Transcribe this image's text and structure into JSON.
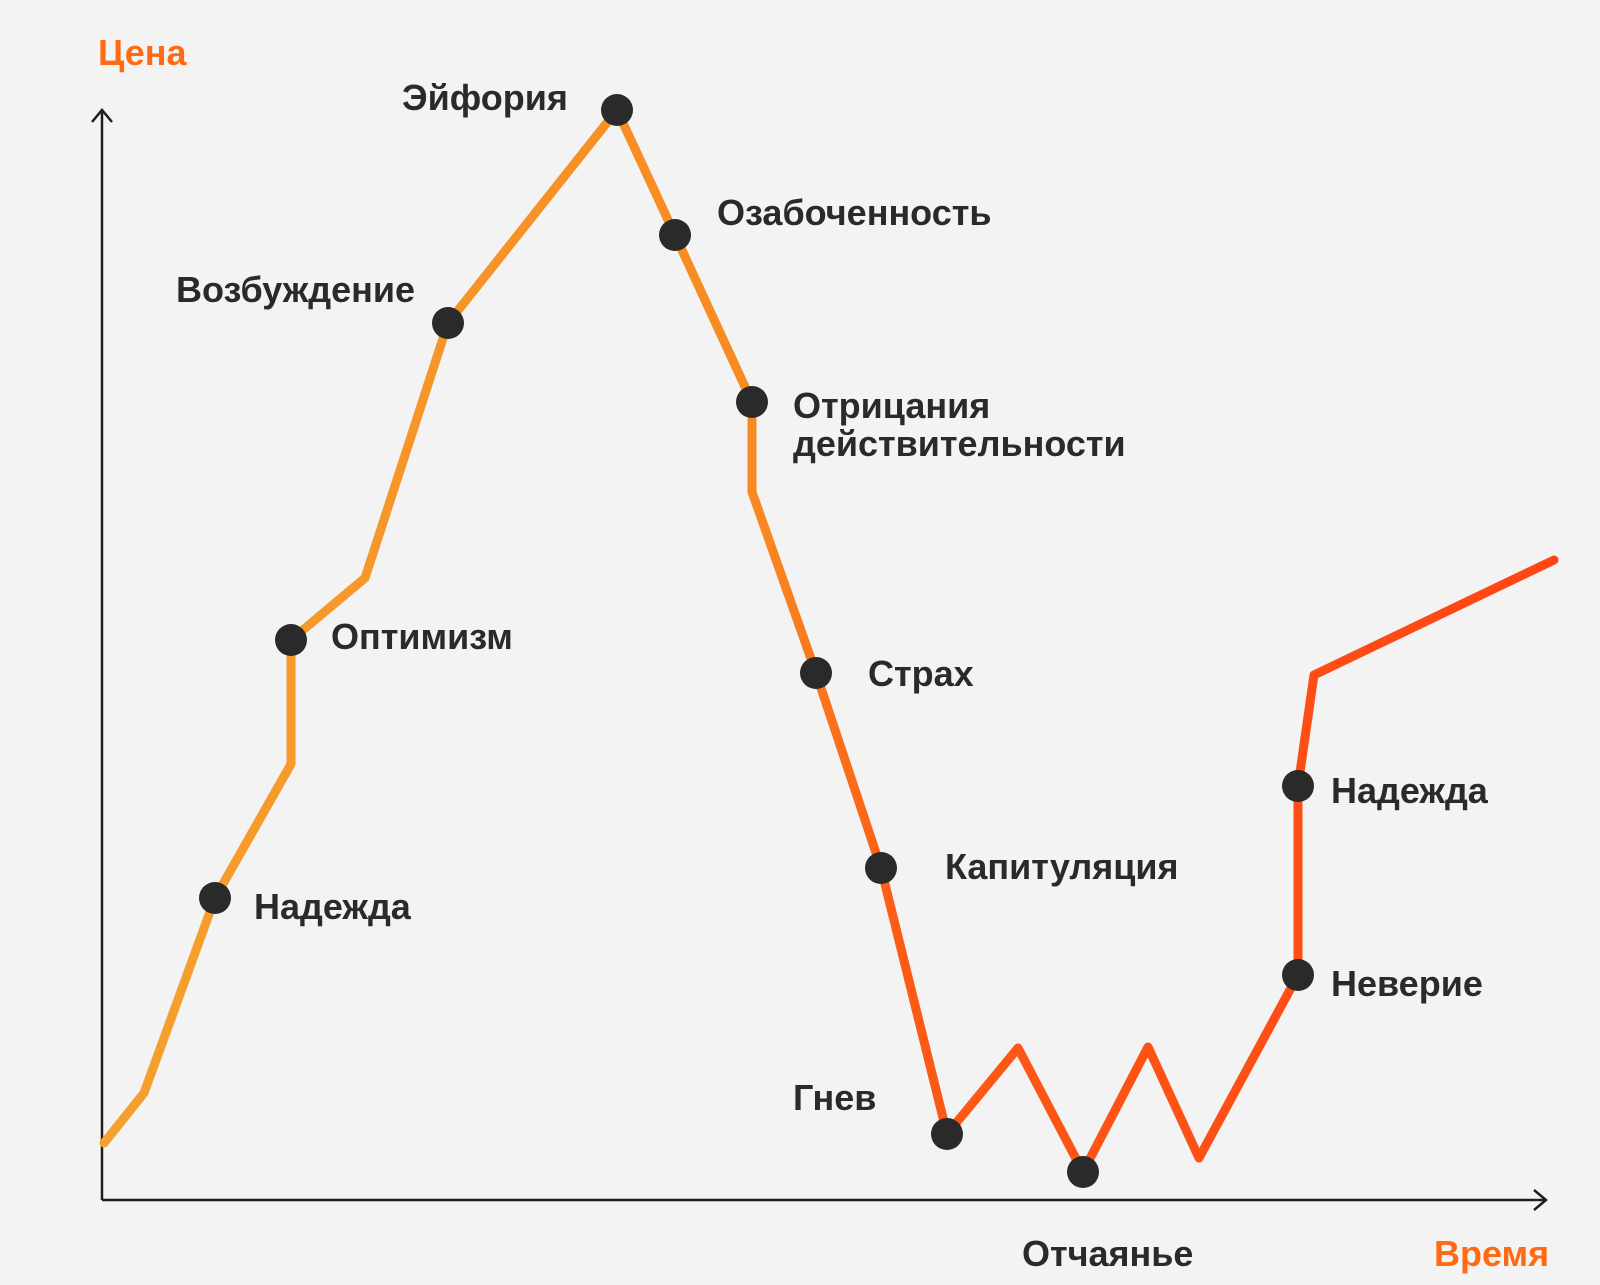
{
  "axes": {
    "y_title": "Цена",
    "x_title": "Время"
  },
  "colors": {
    "axis_title": "#ff6a13",
    "label_text": "#2a2a2a",
    "dot": "#2a2a2a",
    "curve_gradient": [
      "#f5a02f",
      "#f88a22",
      "#fd5a16",
      "#ff4514"
    ],
    "background": "#f3f3f3"
  },
  "stages": [
    {
      "id": "hope-1",
      "label": "Надежда"
    },
    {
      "id": "optimism",
      "label": "Оптимизм"
    },
    {
      "id": "excitement",
      "label": "Возбуждение"
    },
    {
      "id": "euphoria",
      "label": "Эйфория"
    },
    {
      "id": "anxiety",
      "label": "Озабоченность"
    },
    {
      "id": "denial",
      "label": "Отрицания действительности",
      "lines": [
        "Отрицания",
        "действительности"
      ]
    },
    {
      "id": "fear",
      "label": "Страх"
    },
    {
      "id": "capitulation",
      "label": "Капитуляция"
    },
    {
      "id": "anger",
      "label": "Гнев"
    },
    {
      "id": "despair",
      "label": "Отчаянье"
    },
    {
      "id": "disbelief",
      "label": "Неверие"
    },
    {
      "id": "hope-2",
      "label": "Надежда"
    }
  ]
}
